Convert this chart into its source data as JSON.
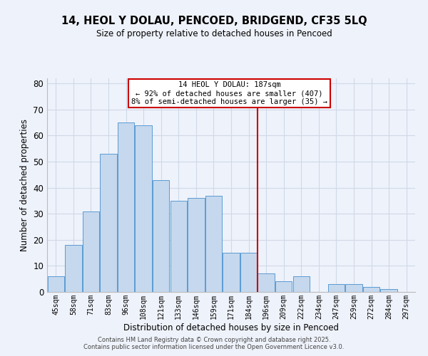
{
  "title": "14, HEOL Y DOLAU, PENCOED, BRIDGEND, CF35 5LQ",
  "subtitle": "Size of property relative to detached houses in Pencoed",
  "xlabel": "Distribution of detached houses by size in Pencoed",
  "ylabel": "Number of detached properties",
  "bar_labels": [
    "45sqm",
    "58sqm",
    "71sqm",
    "83sqm",
    "96sqm",
    "108sqm",
    "121sqm",
    "133sqm",
    "146sqm",
    "159sqm",
    "171sqm",
    "184sqm",
    "196sqm",
    "209sqm",
    "222sqm",
    "234sqm",
    "247sqm",
    "259sqm",
    "272sqm",
    "284sqm",
    "297sqm"
  ],
  "bar_values": [
    6,
    18,
    31,
    53,
    65,
    64,
    43,
    35,
    36,
    37,
    15,
    15,
    7,
    4,
    6,
    0,
    3,
    3,
    2,
    1,
    0
  ],
  "bar_color": "#c5d8ed",
  "bar_edge_color": "#5b9bd5",
  "vline_x": 11.5,
  "vline_color": "#cc0000",
  "annotation_title": "14 HEOL Y DOLAU: 187sqm",
  "annotation_line1": "← 92% of detached houses are smaller (407)",
  "annotation_line2": "8% of semi-detached houses are larger (35) →",
  "annotation_box_color": "#ffffff",
  "annotation_box_edge": "#cc0000",
  "ylim": [
    0,
    82
  ],
  "yticks": [
    0,
    10,
    20,
    30,
    40,
    50,
    60,
    70,
    80
  ],
  "grid_color": "#d0d8e8",
  "background_color": "#eef2fa",
  "footer1": "Contains HM Land Registry data © Crown copyright and database right 2025.",
  "footer2": "Contains public sector information licensed under the Open Government Licence v3.0."
}
